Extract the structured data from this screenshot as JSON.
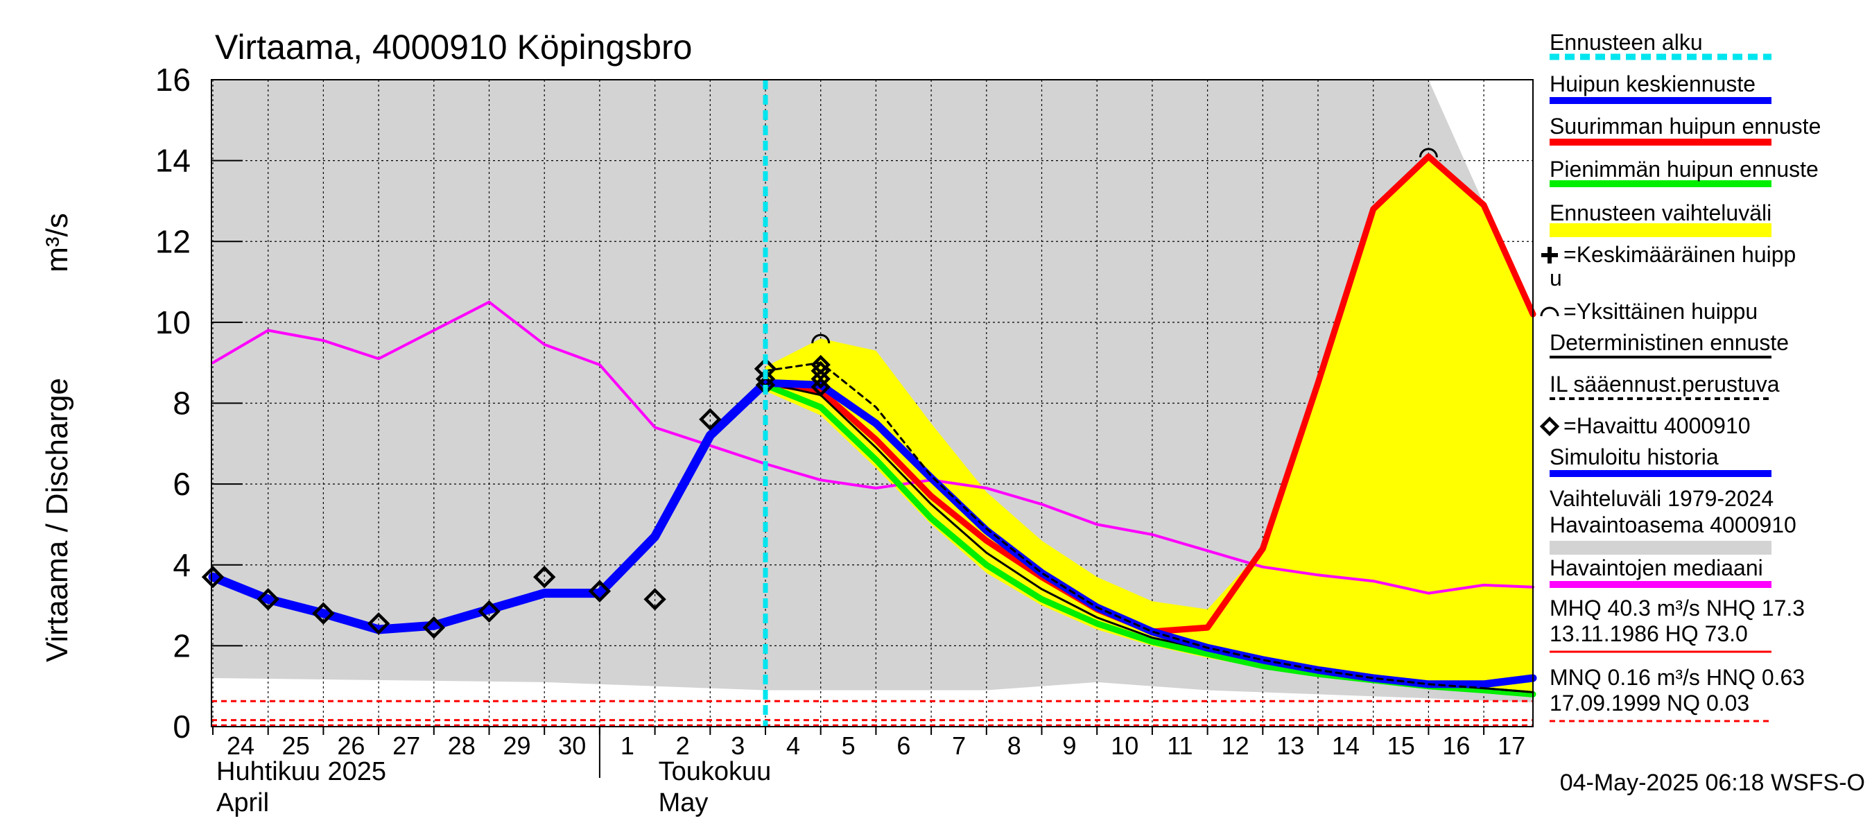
{
  "chart_data": {
    "type": "line",
    "title": "Virtaama, 4000910 Köpingsbro",
    "ylabel_fi": "Virtaama / Discharge",
    "ylabel_unit": "m³/s",
    "ylim": [
      0,
      16
    ],
    "y_ticks": [
      0,
      2,
      4,
      6,
      8,
      10,
      12,
      14,
      16
    ],
    "xlim": [
      0,
      24.5
    ],
    "x_tick_labels": [
      {
        "x": 0,
        "label": "24"
      },
      {
        "x": 1,
        "label": "25"
      },
      {
        "x": 2,
        "label": "26"
      },
      {
        "x": 3,
        "label": "27"
      },
      {
        "x": 4,
        "label": "28"
      },
      {
        "x": 5,
        "label": "29"
      },
      {
        "x": 6,
        "label": "30"
      },
      {
        "x": 7,
        "label": "1"
      },
      {
        "x": 8,
        "label": "2"
      },
      {
        "x": 9,
        "label": "3"
      },
      {
        "x": 10,
        "label": "4"
      },
      {
        "x": 11,
        "label": "5"
      },
      {
        "x": 12,
        "label": "6"
      },
      {
        "x": 13,
        "label": "7"
      },
      {
        "x": 14,
        "label": "8"
      },
      {
        "x": 15,
        "label": "9"
      },
      {
        "x": 16,
        "label": "10"
      },
      {
        "x": 17,
        "label": "11"
      },
      {
        "x": 18,
        "label": "12"
      },
      {
        "x": 19,
        "label": "13"
      },
      {
        "x": 20,
        "label": "14"
      },
      {
        "x": 21,
        "label": "15"
      },
      {
        "x": 22,
        "label": "16"
      },
      {
        "x": 23,
        "label": "17"
      }
    ],
    "month_labels": [
      {
        "x": 0,
        "line1": "Huhtikuu  2025",
        "line2": "April"
      },
      {
        "x": 8,
        "line1": "Toukokuu",
        "line2": "May"
      }
    ],
    "month_divider_x": 7,
    "forecast_start_x": 10,
    "hist_range": {
      "x": [
        0,
        22,
        24.5
      ],
      "upper": [
        16,
        16,
        10.2
      ],
      "x_lower": [
        0,
        6,
        10,
        14,
        16,
        18,
        22,
        24.5
      ],
      "lower": [
        1.2,
        1.1,
        0.9,
        0.9,
        1.1,
        0.9,
        0.7,
        0.6
      ]
    },
    "forecast_range": {
      "x": [
        10,
        11,
        12,
        13,
        14,
        15,
        16,
        17,
        18,
        19,
        20,
        21,
        22,
        23,
        24.5
      ],
      "upper": [
        8.9,
        9.6,
        9.3,
        7.5,
        5.8,
        4.6,
        3.7,
        3.1,
        2.9,
        4.4,
        8.5,
        12.8,
        14.1,
        12.9,
        10.2
      ],
      "lower": [
        8.3,
        7.7,
        6.4,
        5.0,
        3.8,
        3.0,
        2.4,
        2.0,
        1.7,
        1.45,
        1.25,
        1.1,
        0.95,
        0.85,
        0.75
      ]
    },
    "series": [
      {
        "name": "Havaintojen mediaani",
        "color": "#ff00ff",
        "width": 4,
        "x": [
          0,
          1,
          2,
          3,
          4,
          5,
          6,
          7,
          8,
          9,
          10,
          11,
          12,
          13,
          14,
          15,
          16,
          17,
          18,
          19,
          20,
          21,
          22,
          23,
          24.5
        ],
        "y": [
          9.0,
          9.8,
          9.55,
          9.1,
          9.8,
          10.5,
          9.45,
          8.95,
          7.4,
          6.95,
          6.5,
          6.1,
          5.9,
          6.1,
          5.9,
          5.5,
          5.0,
          4.75,
          4.35,
          3.95,
          3.75,
          3.6,
          3.3,
          3.5,
          3.45
        ]
      },
      {
        "name": "Simuloitu historia",
        "color": "#0000ff",
        "width": 13,
        "x": [
          0,
          1,
          2,
          3,
          4,
          5,
          6,
          7,
          8,
          9,
          10
        ],
        "y": [
          3.7,
          3.15,
          2.8,
          2.4,
          2.5,
          2.9,
          3.3,
          3.3,
          4.7,
          7.2,
          8.5
        ]
      },
      {
        "name": "Suurimman huipun ennuste",
        "color": "#ff0000",
        "width": 9,
        "x": [
          10,
          11,
          12,
          13,
          14,
          15,
          16,
          17,
          18,
          19,
          20,
          21,
          22,
          23,
          24.5
        ],
        "y": [
          8.5,
          8.3,
          7.1,
          5.7,
          4.6,
          3.7,
          2.9,
          2.35,
          2.45,
          4.4,
          8.5,
          12.8,
          14.1,
          12.9,
          10.2
        ]
      },
      {
        "name": "Pienimmän huipun ennuste",
        "color": "#00ee00",
        "width": 9,
        "x": [
          10,
          11,
          12,
          13,
          14,
          15,
          16,
          17,
          18,
          19,
          20,
          21,
          22,
          23,
          24.5
        ],
        "y": [
          8.45,
          7.9,
          6.6,
          5.15,
          4.0,
          3.15,
          2.55,
          2.1,
          1.8,
          1.5,
          1.3,
          1.15,
          1.0,
          0.9,
          0.8
        ]
      },
      {
        "name": "Deterministinen ennuste",
        "color": "#000000",
        "width": 3,
        "x": [
          10,
          11,
          12,
          13,
          14,
          15,
          16,
          17,
          18,
          19,
          20,
          21,
          22,
          23,
          24.5
        ],
        "y": [
          8.5,
          8.2,
          6.9,
          5.5,
          4.3,
          3.4,
          2.7,
          2.2,
          1.9,
          1.6,
          1.35,
          1.2,
          1.05,
          0.95,
          0.85
        ]
      },
      {
        "name": "Huipun keskiennuste",
        "color": "#0000ff",
        "width": 11,
        "x": [
          10,
          11,
          12,
          13,
          14,
          15,
          16,
          17,
          18,
          19,
          20,
          21,
          22,
          23,
          24.5
        ],
        "y": [
          8.5,
          8.45,
          7.5,
          6.15,
          4.85,
          3.8,
          2.95,
          2.35,
          1.95,
          1.65,
          1.4,
          1.2,
          1.05,
          1.05,
          1.2
        ]
      },
      {
        "name": "IL sääennust.perustuva",
        "color": "#000000",
        "width": 3,
        "dashed": true,
        "x": [
          10,
          11,
          12,
          13,
          14,
          15,
          16,
          17,
          18,
          19,
          20,
          21,
          22,
          23,
          24.5
        ],
        "y": [
          8.8,
          9.0,
          7.9,
          6.2,
          4.9,
          3.8,
          2.95,
          2.35,
          1.95,
          1.65,
          1.4,
          1.2,
          1.05,
          0.95,
          0.85
        ]
      }
    ],
    "observed": {
      "name": "Havaittu 4000910",
      "x": [
        0,
        1,
        2,
        3,
        4,
        5,
        6,
        7,
        8,
        9,
        10
      ],
      "y": [
        3.7,
        3.15,
        2.8,
        2.55,
        2.45,
        2.85,
        3.7,
        3.35,
        3.15,
        7.6,
        8.85
      ]
    },
    "peak_markers": {
      "diamonds_x": [
        11,
        11,
        11,
        11,
        10,
        10
      ],
      "diamonds_y": [
        8.95,
        8.8,
        8.6,
        8.4,
        8.6,
        8.45
      ],
      "arcs_x": [
        11,
        22
      ],
      "arcs_y": [
        9.55,
        14.15
      ]
    },
    "ref_lines": [
      {
        "y": 0.63,
        "color": "#ff0000"
      },
      {
        "y": 0.16,
        "color": "#ff0000"
      },
      {
        "y": 0.03,
        "color": "#ff0000"
      }
    ],
    "legend": [
      {
        "label": "Ennusteen alku",
        "kind": "line",
        "color": "#00e5ee",
        "dashed": true
      },
      {
        "label": "Huipun keskiennuste",
        "kind": "line",
        "color": "#0000ff"
      },
      {
        "label": "Suurimman huipun ennuste",
        "kind": "line",
        "color": "#ff0000"
      },
      {
        "label": "Pienimmän huipun ennuste",
        "kind": "line",
        "color": "#00ee00"
      },
      {
        "label": "Ennusteen vaihteluväli",
        "kind": "band",
        "color": "#ffff00"
      },
      {
        "label": "=Keskimääräinen huipp",
        "label2": "u",
        "kind": "plus"
      },
      {
        "label": "=Yksittäinen huippu",
        "kind": "arc"
      },
      {
        "label": "Deterministinen ennuste",
        "kind": "line",
        "color": "#000000"
      },
      {
        "label": "IL sääennust.perustuva",
        "kind": "line",
        "color": "#000000",
        "dashed": true
      },
      {
        "label": "=Havaittu 4000910",
        "kind": "diamond"
      },
      {
        "label": "Simuloitu historia",
        "kind": "line",
        "color": "#0000ff"
      },
      {
        "label": "Vaihteluväli 1979-2024",
        "label2": " Havaintoasema 4000910",
        "kind": "band",
        "color": "#d3d3d3"
      },
      {
        "label": "Havaintojen mediaani",
        "kind": "line",
        "color": "#ff00ff"
      },
      {
        "label": "MHQ 40.3 m³/s NHQ 17.3",
        "label2": "13.11.1986 HQ 73.0",
        "kind": "line",
        "color": "#ff0000"
      },
      {
        "label": "MNQ 0.16 m³/s HNQ 0.63",
        "label2": "17.09.1999 NQ 0.03",
        "kind": "line",
        "color": "#ff0000",
        "dashed": true
      }
    ],
    "footer": "04-May-2025 06:18 WSFS-O"
  }
}
